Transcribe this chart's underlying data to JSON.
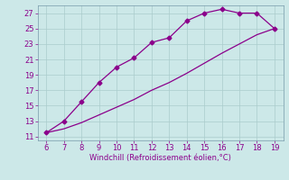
{
  "line1_x": [
    6,
    7,
    8,
    9,
    10,
    11,
    12,
    13,
    14,
    15,
    16,
    17,
    18,
    19
  ],
  "line1_y": [
    11.5,
    13.0,
    15.5,
    18.0,
    20.0,
    21.2,
    23.2,
    23.8,
    26.0,
    27.0,
    27.5,
    27.0,
    27.0,
    25.0
  ],
  "line2_x": [
    6,
    7,
    8,
    9,
    10,
    11,
    12,
    13,
    14,
    15,
    16,
    17,
    18,
    19
  ],
  "line2_y": [
    11.5,
    12.0,
    12.8,
    13.8,
    14.8,
    15.8,
    17.0,
    18.0,
    19.2,
    20.5,
    21.8,
    23.0,
    24.2,
    25.0
  ],
  "line_color": "#8B008B",
  "marker": "D",
  "marker_size": 2.5,
  "line_width": 0.9,
  "bg_color": "#cce8e8",
  "grid_color": "#aacccc",
  "xlabel": "Windchill (Refroidissement éolien,°C)",
  "xlabel_color": "#8B008B",
  "xlabel_fontsize": 6.0,
  "xlim_min": 5.5,
  "xlim_max": 19.5,
  "ylim_min": 10.5,
  "ylim_max": 28.0,
  "xticks": [
    6,
    7,
    8,
    9,
    10,
    11,
    12,
    13,
    14,
    15,
    16,
    17,
    18,
    19
  ],
  "yticks": [
    11,
    13,
    15,
    17,
    19,
    21,
    23,
    25,
    27
  ],
  "tick_fontsize": 6.0,
  "tick_color": "#8B008B",
  "spine_color": "#7799aa"
}
